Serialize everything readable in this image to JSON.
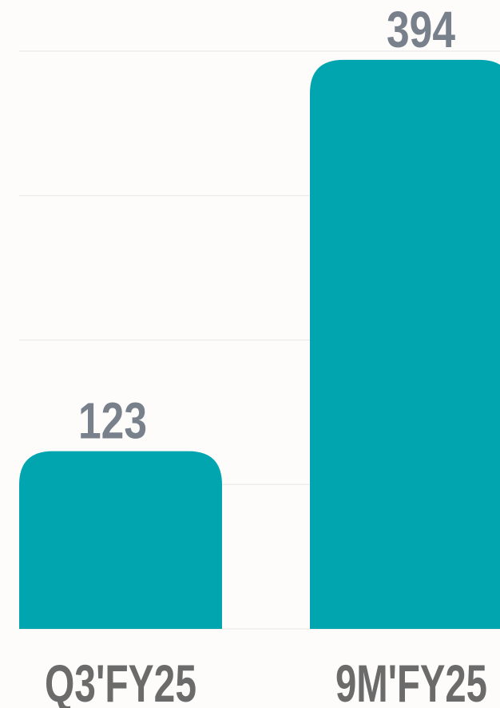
{
  "chart_data": {
    "type": "bar",
    "categories": [
      "Q3'FY25",
      "9M'FY25"
    ],
    "values": [
      123,
      394
    ],
    "color": "#00a5b0",
    "ylim": [
      0,
      400
    ],
    "yticks": [
      0,
      100,
      200,
      300,
      400
    ],
    "grid": true
  }
}
